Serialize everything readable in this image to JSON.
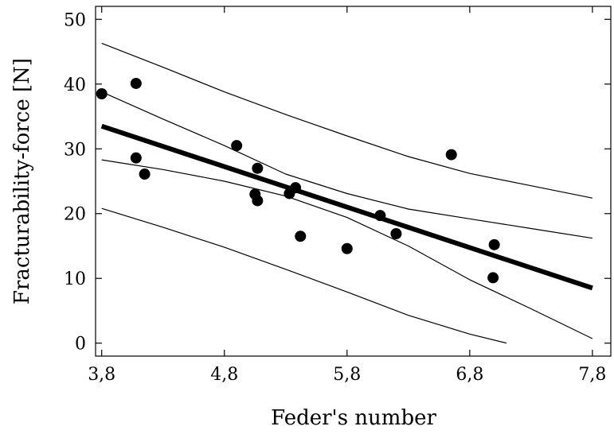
{
  "chart_data": {
    "type": "scatter",
    "xlabel": "Feder's number",
    "ylabel": "Fracturability-force [N]",
    "xlim": [
      3.75,
      7.95
    ],
    "ylim": [
      -2,
      52
    ],
    "x_ticks": [
      3.8,
      4.8,
      5.8,
      6.8,
      7.8
    ],
    "x_tick_labels": [
      "3,8",
      "4,8",
      "5,8",
      "6,8",
      "7,8"
    ],
    "y_ticks": [
      0,
      10,
      20,
      30,
      40,
      50
    ],
    "y_tick_labels": [
      "0",
      "10",
      "20",
      "30",
      "40",
      "50"
    ],
    "grid": false,
    "points": [
      {
        "x": 3.8,
        "y": 38.5
      },
      {
        "x": 4.08,
        "y": 40.1
      },
      {
        "x": 4.08,
        "y": 28.6
      },
      {
        "x": 4.15,
        "y": 26.1
      },
      {
        "x": 4.9,
        "y": 30.5
      },
      {
        "x": 5.05,
        "y": 23.0
      },
      {
        "x": 5.07,
        "y": 27.0
      },
      {
        "x": 5.07,
        "y": 22.0
      },
      {
        "x": 5.33,
        "y": 23.1
      },
      {
        "x": 5.38,
        "y": 24.0
      },
      {
        "x": 5.42,
        "y": 16.5
      },
      {
        "x": 5.8,
        "y": 14.6
      },
      {
        "x": 6.07,
        "y": 19.7
      },
      {
        "x": 6.2,
        "y": 16.9
      },
      {
        "x": 6.65,
        "y": 29.1
      },
      {
        "x": 7.0,
        "y": 15.2
      },
      {
        "x": 6.99,
        "y": 10.1
      }
    ],
    "fit_line": {
      "x": [
        3.8,
        7.8
      ],
      "y": [
        33.5,
        8.5
      ]
    },
    "confidence_band": {
      "upper": {
        "x": [
          3.8,
          4.3,
          4.8,
          5.3,
          5.8,
          6.3,
          6.8,
          7.3,
          7.8
        ],
        "y": [
          28.3,
          26.8,
          25.0,
          22.7,
          19.4,
          15.0,
          9.8,
          5.3,
          0.7
        ]
      },
      "lower": {
        "x": [
          3.8,
          4.3,
          4.8,
          5.3,
          5.8,
          6.3,
          6.8,
          7.3,
          7.8
        ],
        "y": [
          38.8,
          34.6,
          30.5,
          26.1,
          23.1,
          20.7,
          19.2,
          17.7,
          16.2
        ]
      }
    },
    "prediction_band": {
      "upper": {
        "x": [
          3.8,
          4.3,
          4.8,
          5.3,
          5.8,
          6.3,
          6.8,
          7.3,
          7.8
        ],
        "y": [
          46.3,
          42.6,
          38.8,
          35.3,
          32.0,
          28.8,
          26.2,
          24.3,
          22.4
        ]
      },
      "lower": {
        "x": [
          3.8,
          4.3,
          4.8,
          5.3,
          5.8,
          6.3,
          6.8,
          7.1
        ],
        "y": [
          20.8,
          17.9,
          14.8,
          11.4,
          7.9,
          4.3,
          1.4,
          0.0
        ]
      }
    },
    "colors": {
      "marks": "#000000",
      "background": "#ffffff"
    }
  }
}
